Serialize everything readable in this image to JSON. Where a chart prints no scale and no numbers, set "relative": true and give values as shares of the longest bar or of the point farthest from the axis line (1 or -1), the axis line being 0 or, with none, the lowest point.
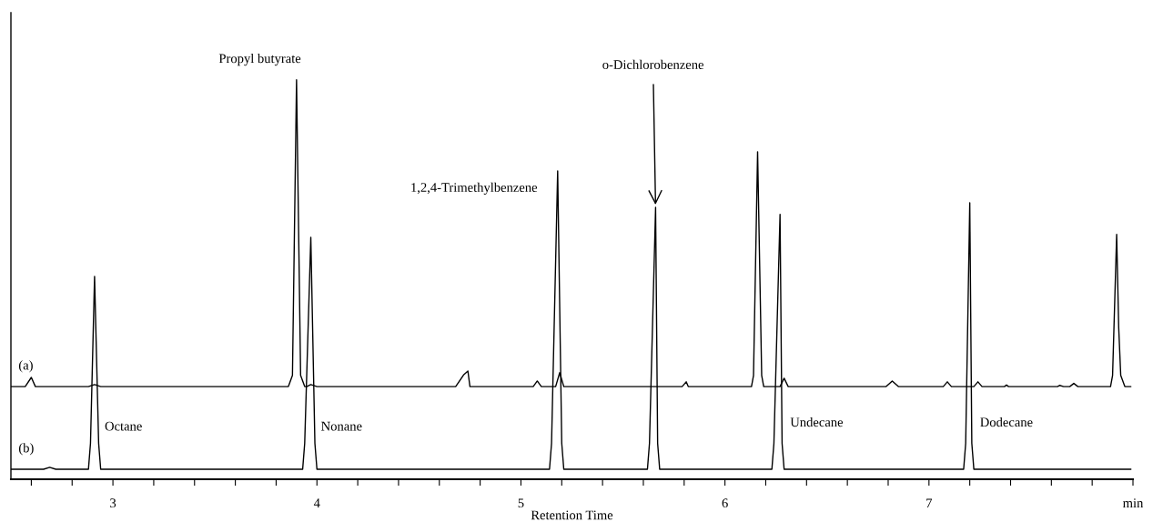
{
  "chart_data": {
    "type": "line",
    "relative": true,
    "xlabel": "Retention Time",
    "tick_labels": "x",
    "xlim": [
      2.5,
      8.0
    ],
    "xticks": [
      {
        "value": 2.6,
        "label": null
      },
      {
        "value": 2.8,
        "label": null
      },
      3,
      {
        "value": 3.2,
        "label": null
      },
      {
        "value": 3.4,
        "label": null
      },
      {
        "value": 3.6,
        "label": null
      },
      {
        "value": 3.8,
        "label": null
      },
      4,
      {
        "value": 4.2,
        "label": null
      },
      {
        "value": 4.4,
        "label": null
      },
      {
        "value": 4.6,
        "label": null
      },
      {
        "value": 4.8,
        "label": null
      },
      5,
      {
        "value": 5.2,
        "label": null
      },
      {
        "value": 5.4,
        "label": null
      },
      {
        "value": 5.6,
        "label": null
      },
      {
        "value": 5.8,
        "label": null
      },
      6,
      {
        "value": 6.2,
        "label": null
      },
      {
        "value": 6.4,
        "label": null
      },
      {
        "value": 6.6,
        "label": null
      },
      {
        "value": 6.8,
        "label": null
      },
      7,
      {
        "value": 7.2,
        "label": null
      },
      {
        "value": 7.4,
        "label": null
      },
      {
        "value": 7.6,
        "label": null
      },
      {
        "value": 7.8,
        "label": null
      },
      {
        "value": 8.0,
        "label": "min"
      }
    ],
    "series": [
      {
        "name": "(a)",
        "color": "#000000",
        "x": [
          2.5,
          2.57,
          2.6,
          2.62,
          2.88,
          2.91,
          2.94,
          3.86,
          3.88,
          3.9,
          3.92,
          3.94,
          3.95,
          3.97,
          4.0,
          4.68,
          4.72,
          4.74,
          4.75,
          5.06,
          5.08,
          5.1,
          5.17,
          5.19,
          5.21,
          5.79,
          5.81,
          5.82,
          6.13,
          6.14,
          6.16,
          6.18,
          6.19,
          6.27,
          6.29,
          6.31,
          6.79,
          6.82,
          6.85,
          7.07,
          7.09,
          7.11,
          7.22,
          7.24,
          7.26,
          7.37,
          7.38,
          7.39,
          7.63,
          7.64,
          7.66,
          7.69,
          7.71,
          7.73,
          7.89,
          7.9,
          7.92,
          7.93,
          7.94,
          7.96,
          7.99
        ],
        "values": [
          0.232,
          0.232,
          0.255,
          0.232,
          0.232,
          0.237,
          0.232,
          0.232,
          0.26,
          1.0,
          0.26,
          0.232,
          0.232,
          0.237,
          0.232,
          0.232,
          0.262,
          0.271,
          0.232,
          0.232,
          0.246,
          0.232,
          0.232,
          0.267,
          0.232,
          0.232,
          0.244,
          0.232,
          0.232,
          0.26,
          0.82,
          0.26,
          0.232,
          0.232,
          0.253,
          0.232,
          0.232,
          0.246,
          0.232,
          0.232,
          0.244,
          0.232,
          0.232,
          0.244,
          0.232,
          0.232,
          0.236,
          0.232,
          0.232,
          0.235,
          0.232,
          0.232,
          0.24,
          0.232,
          0.232,
          0.26,
          0.613,
          0.38,
          0.26,
          0.232,
          0.232
        ]
      },
      {
        "name": "(b)",
        "color": "#000000",
        "x": [
          2.5,
          2.66,
          2.69,
          2.72,
          2.88,
          2.89,
          2.91,
          2.93,
          2.94,
          3.93,
          3.94,
          3.97,
          3.99,
          4.0,
          5.14,
          5.15,
          5.18,
          5.2,
          5.21,
          5.62,
          5.63,
          5.66,
          5.67,
          5.68,
          6.23,
          6.24,
          6.27,
          6.28,
          6.29,
          7.17,
          7.18,
          7.2,
          7.21,
          7.22,
          7.99
        ],
        "values": [
          0.025,
          0.025,
          0.03,
          0.025,
          0.025,
          0.09,
          0.508,
          0.09,
          0.025,
          0.025,
          0.09,
          0.606,
          0.09,
          0.025,
          0.025,
          0.09,
          0.772,
          0.09,
          0.025,
          0.025,
          0.09,
          0.681,
          0.09,
          0.025,
          0.025,
          0.09,
          0.663,
          0.09,
          0.025,
          0.025,
          0.09,
          0.692,
          0.09,
          0.025,
          0.025
        ]
      }
    ],
    "annotations": [
      {
        "text": "Propyl butyrate",
        "x": 3.9,
        "y": 1.0
      },
      {
        "text": "1,2,4-Trimethylbenzene",
        "x": 5.18,
        "y": 0.772
      },
      {
        "text": "o-Dichlorobenzene",
        "x": 5.66,
        "y": 0.681
      },
      {
        "text": "Octane",
        "x": 2.91,
        "y": 0.13
      },
      {
        "text": "Nonane",
        "x": 3.97,
        "y": 0.13
      },
      {
        "text": "Undecane",
        "x": 6.27,
        "y": 0.14
      },
      {
        "text": "Dodecane",
        "x": 7.2,
        "y": 0.14
      }
    ]
  }
}
